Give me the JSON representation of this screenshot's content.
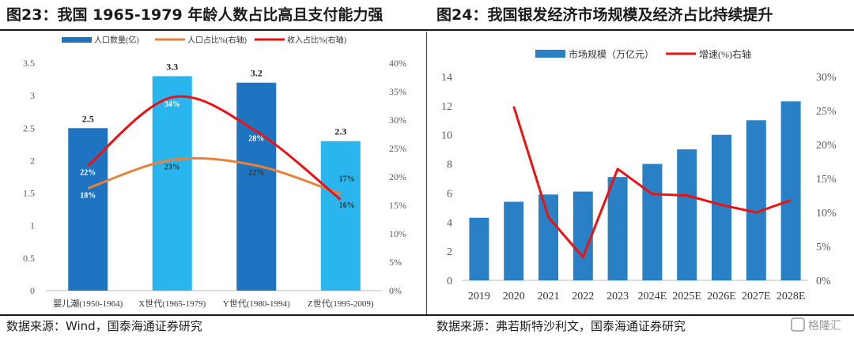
{
  "left": {
    "title": "图23：我国 1965-1979 年龄人数占比高且支付能力强",
    "source": "数据来源：Wind，国泰海通证券研究",
    "legend": [
      "人口数量(亿)",
      "人口占比%(右轴)",
      "收入占比%(右轴)"
    ]
  },
  "right": {
    "title": "图24：我国银发经济市场规模及经济占比持续提升",
    "source": "数据来源：弗若斯特沙利文，国泰海通证券研究",
    "legend": [
      "市场规模（万亿元）",
      "增速(%)右轴"
    ]
  },
  "watermark": "格隆汇",
  "colors": {
    "dark_blue": "#1f74c1",
    "light_blue": "#29b5ee",
    "orange": "#e8823a",
    "red": "#ee1111",
    "bar_blue": "#2a80c4"
  },
  "chart_data": [
    {
      "type": "bar",
      "categories": [
        "婴儿潮(1950-1964)",
        "X世代(1965-1979)",
        "Y世代(1980-1994)",
        "Z世代(1995-2009)"
      ],
      "series": [
        {
          "name": "人口数量(亿)",
          "type": "bar",
          "axis": "left",
          "values": [
            2.5,
            3.3,
            3.2,
            2.3
          ],
          "labels": [
            "2.5",
            "3.3",
            "3.2",
            "2.3"
          ],
          "bar_colors": [
            "#1f74c1",
            "#29b5ee",
            "#1f74c1",
            "#29b5ee"
          ]
        },
        {
          "name": "人口占比%(右轴)",
          "type": "line",
          "axis": "right",
          "values": [
            18,
            23,
            22,
            17
          ],
          "labels": [
            "18%",
            "23%",
            "22%",
            "17%"
          ]
        },
        {
          "name": "收入占比%(右轴)",
          "type": "line",
          "axis": "right",
          "values": [
            22,
            34,
            28,
            16
          ],
          "labels": [
            "22%",
            "34%",
            "28%",
            "16%"
          ]
        }
      ],
      "ylim": [
        0,
        3.5
      ],
      "yticks": [
        "0",
        "0.5",
        "1",
        "1.5",
        "2",
        "2.5",
        "3",
        "3.5"
      ],
      "y2lim": [
        0,
        40
      ],
      "y2ticks": [
        "0%",
        "5%",
        "10%",
        "15%",
        "20%",
        "25%",
        "30%",
        "35%",
        "40%"
      ],
      "legend_position": "top"
    },
    {
      "type": "bar",
      "categories": [
        "2019",
        "2020",
        "2021",
        "2022",
        "2023",
        "2024E",
        "2025E",
        "2026E",
        "2027E",
        "2028E"
      ],
      "series": [
        {
          "name": "市场规模（万亿元）",
          "type": "bar",
          "axis": "left",
          "values": [
            4.3,
            5.4,
            5.9,
            6.1,
            7.1,
            8.0,
            9.0,
            10.0,
            11.0,
            12.3
          ]
        },
        {
          "name": "增速(%)右轴",
          "type": "line",
          "axis": "right",
          "values": [
            null,
            25.6,
            9.3,
            3.4,
            16.4,
            12.7,
            12.5,
            11.1,
            10.0,
            11.8
          ]
        }
      ],
      "ylim": [
        0,
        14
      ],
      "yticks": [
        "0",
        "2",
        "4",
        "6",
        "8",
        "10",
        "12",
        "14"
      ],
      "y2lim": [
        0,
        30
      ],
      "y2ticks": [
        "0%",
        "5%",
        "10%",
        "15%",
        "20%",
        "25%",
        "30%"
      ],
      "legend_position": "top"
    }
  ]
}
